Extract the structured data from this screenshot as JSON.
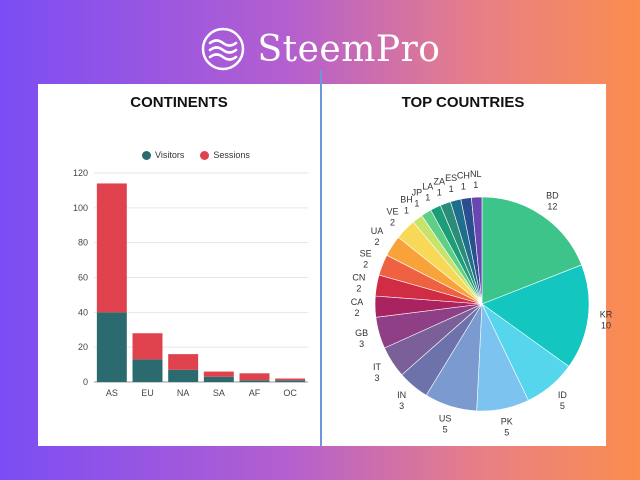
{
  "brand": {
    "name": "SteemPro"
  },
  "colors": {
    "visitors": "#2b6a6f",
    "sessions": "#e0424d",
    "divider": "#6c97d8"
  },
  "chart_data": [
    {
      "type": "bar",
      "title": "CONTINENTS",
      "stacked": true,
      "categories": [
        "AS",
        "EU",
        "NA",
        "SA",
        "AF",
        "OC"
      ],
      "series": [
        {
          "name": "Visitors",
          "color": "#2b6a6f",
          "values": [
            40,
            13,
            7,
            3,
            1,
            1
          ]
        },
        {
          "name": "Sessions",
          "color": "#e0424d",
          "values": [
            74,
            15,
            9,
            3,
            4,
            1
          ]
        }
      ],
      "ylim": [
        0,
        120
      ],
      "yticks": [
        0,
        20,
        40,
        60,
        80,
        100,
        120
      ],
      "grid": true,
      "legend": "top"
    },
    {
      "type": "pie",
      "title": "TOP COUNTRIES",
      "slices": [
        {
          "label": "BD",
          "value": 12,
          "color": "#3cc48a"
        },
        {
          "label": "KR",
          "value": 10,
          "color": "#13c6bf"
        },
        {
          "label": "ID",
          "value": 5,
          "color": "#55d6ec"
        },
        {
          "label": "PK",
          "value": 5,
          "color": "#7cc4ef"
        },
        {
          "label": "US",
          "value": 5,
          "color": "#7b9ad0"
        },
        {
          "label": "IN",
          "value": 3,
          "color": "#6d72aa"
        },
        {
          "label": "IT",
          "value": 3,
          "color": "#7b5f98"
        },
        {
          "label": "GB",
          "value": 3,
          "color": "#8e3f86"
        },
        {
          "label": "CA",
          "value": 2,
          "color": "#a8235f"
        },
        {
          "label": "CN",
          "value": 2,
          "color": "#d02c43"
        },
        {
          "label": "SE",
          "value": 2,
          "color": "#ee6241"
        },
        {
          "label": "UA",
          "value": 2,
          "color": "#f8a339"
        },
        {
          "label": "VE",
          "value": 2,
          "color": "#f7d957"
        },
        {
          "label": "BH",
          "value": 1,
          "color": "#c7e36a"
        },
        {
          "label": "JP",
          "value": 1,
          "color": "#5fcf88"
        },
        {
          "label": "LA",
          "value": 1,
          "color": "#1b9e77"
        },
        {
          "label": "ZA",
          "value": 1,
          "color": "#2c8c7a"
        },
        {
          "label": "ES",
          "value": 1,
          "color": "#1f6e8c"
        },
        {
          "label": "CH",
          "value": 1,
          "color": "#2a4f8f"
        },
        {
          "label": "NL",
          "value": 1,
          "color": "#6a47b0"
        }
      ]
    }
  ]
}
